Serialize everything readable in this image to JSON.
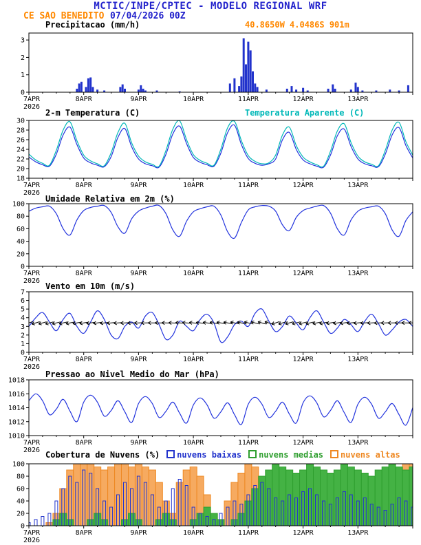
{
  "header": {
    "title": "MCTIC/INPE/CPTEC - MODELO REGIONAL WRF",
    "station": "CE SAO BENEDITO",
    "run_datetime": "07/04/2026 00Z",
    "location": "40.8650W 4.0486S 901m"
  },
  "colors": {
    "title_blue": "#2222cc",
    "orange": "#ff8800",
    "line_blue": "#2233dd",
    "cyan": "#00b8b8",
    "axis_black": "#000000"
  },
  "x_axis": {
    "day_labels": [
      "7APR",
      "8APR",
      "9APR",
      "10APR",
      "11APR",
      "12APR",
      "13APR"
    ],
    "year": "2026",
    "total_hours": 168
  },
  "chart_data": [
    {
      "type": "bar",
      "title": "Precipitacao (mm/h)",
      "ylim": [
        0,
        3.4
      ],
      "yticks": [
        0,
        1,
        2,
        3
      ],
      "bar_color": "#2233cc",
      "bars": [
        [
          21,
          0.2
        ],
        [
          22,
          0.5
        ],
        [
          23,
          0.6
        ],
        [
          25,
          0.3
        ],
        [
          26,
          0.8
        ],
        [
          27,
          0.85
        ],
        [
          28,
          0.3
        ],
        [
          30,
          0.15
        ],
        [
          33,
          0.1
        ],
        [
          40,
          0.3
        ],
        [
          41,
          0.45
        ],
        [
          42,
          0.2
        ],
        [
          48,
          0.15
        ],
        [
          49,
          0.4
        ],
        [
          50,
          0.2
        ],
        [
          51,
          0.1
        ],
        [
          56,
          0.1
        ],
        [
          66,
          0.05
        ],
        [
          88,
          0.5
        ],
        [
          90,
          0.8
        ],
        [
          92,
          0.35
        ],
        [
          93,
          0.9
        ],
        [
          94,
          3.1
        ],
        [
          95,
          1.6
        ],
        [
          96,
          2.9
        ],
        [
          97,
          2.4
        ],
        [
          98,
          1.2
        ],
        [
          99,
          0.5
        ],
        [
          100,
          0.3
        ],
        [
          104,
          0.15
        ],
        [
          113,
          0.2
        ],
        [
          115,
          0.35
        ],
        [
          117,
          0.15
        ],
        [
          120,
          0.25
        ],
        [
          122,
          0.1
        ],
        [
          131,
          0.2
        ],
        [
          133,
          0.45
        ],
        [
          134,
          0.2
        ],
        [
          141,
          0.15
        ],
        [
          143,
          0.55
        ],
        [
          144,
          0.3
        ],
        [
          146,
          0.1
        ],
        [
          152,
          0.1
        ],
        [
          158,
          0.15
        ],
        [
          162,
          0.1
        ],
        [
          166,
          0.4
        ]
      ]
    },
    {
      "type": "line",
      "title": "2-m Temperatura (C)",
      "ylim": [
        18,
        30
      ],
      "yticks": [
        18,
        20,
        22,
        24,
        26,
        28,
        30
      ],
      "t_step": 3,
      "series": [
        {
          "name": "2-m Temperatura (C)",
          "color": "#2233dd",
          "values": [
            22.4,
            21.4,
            20.8,
            20.5,
            23.0,
            27.0,
            28.6,
            25.0,
            22.2,
            21.2,
            20.7,
            20.4,
            22.5,
            26.5,
            28.3,
            24.5,
            22.0,
            21.0,
            20.6,
            20.3,
            23.0,
            27.2,
            28.8,
            25.2,
            22.3,
            21.3,
            20.8,
            20.5,
            23.2,
            27.5,
            29.0,
            25.0,
            22.1,
            21.1,
            20.7,
            21.0,
            22.0,
            26.0,
            27.5,
            24.0,
            21.8,
            21.0,
            20.5,
            20.3,
            22.8,
            26.8,
            28.2,
            24.6,
            22.0,
            21.0,
            20.6,
            20.4,
            23.0,
            27.0,
            28.5,
            24.8,
            22.2
          ]
        },
        {
          "name": "Temperatura Aparente (C)",
          "color": "#00b8b8",
          "values": [
            23.0,
            21.8,
            21.1,
            20.7,
            23.8,
            28.0,
            29.7,
            25.8,
            22.8,
            21.6,
            21.0,
            20.6,
            23.3,
            27.5,
            29.4,
            25.3,
            22.6,
            21.4,
            20.9,
            20.5,
            23.8,
            28.2,
            29.9,
            26.0,
            22.9,
            21.7,
            21.1,
            20.7,
            24.0,
            28.5,
            29.8,
            25.8,
            22.7,
            21.5,
            21.0,
            21.2,
            22.8,
            27.0,
            28.6,
            24.8,
            22.4,
            21.4,
            20.8,
            20.5,
            23.6,
            27.8,
            29.3,
            25.4,
            22.6,
            21.4,
            20.9,
            20.6,
            23.8,
            28.0,
            29.6,
            25.6,
            22.8
          ]
        }
      ]
    },
    {
      "type": "line",
      "title": "Umidade Relativa em 2m (%)",
      "ylim": [
        0,
        100
      ],
      "yticks": [
        0,
        20,
        40,
        60,
        80,
        100
      ],
      "t_step": 3,
      "series": [
        {
          "name": "Umidade Relativa",
          "color": "#2233dd",
          "values": [
            88,
            93,
            95,
            96,
            84,
            60,
            50,
            74,
            89,
            94,
            96,
            97,
            86,
            63,
            53,
            76,
            88,
            93,
            96,
            97,
            84,
            58,
            48,
            72,
            87,
            92,
            95,
            96,
            82,
            55,
            45,
            70,
            90,
            95,
            97,
            96,
            88,
            66,
            57,
            78,
            89,
            93,
            96,
            97,
            85,
            60,
            50,
            74,
            88,
            93,
            95,
            96,
            84,
            58,
            48,
            73,
            87
          ]
        }
      ]
    },
    {
      "type": "line",
      "title": "Vento em 10m (m/s)",
      "ylim": [
        0,
        7
      ],
      "yticks": [
        0,
        1,
        2,
        3,
        4,
        5,
        6,
        7
      ],
      "t_step": 3,
      "series": [
        {
          "name": "Vento em 10m",
          "color": "#2233dd",
          "values": [
            3.0,
            4.0,
            4.6,
            3.5,
            2.5,
            3.8,
            4.5,
            3.0,
            2.2,
            3.5,
            4.8,
            3.8,
            2.0,
            1.6,
            3.0,
            3.5,
            2.8,
            4.2,
            4.6,
            3.2,
            1.5,
            2.0,
            3.6,
            3.0,
            2.5,
            3.8,
            4.4,
            3.4,
            1.2,
            1.8,
            3.2,
            3.6,
            3.0,
            4.5,
            5.0,
            3.6,
            2.4,
            3.0,
            4.2,
            3.4,
            2.6,
            4.0,
            4.8,
            3.5,
            2.2,
            2.8,
            3.8,
            3.2,
            2.4,
            3.6,
            4.4,
            3.3,
            2.0,
            2.6,
            3.5,
            3.8,
            3.0
          ]
        }
      ],
      "wind_barbs": {
        "y_value": 3.4,
        "interval_hours": 3,
        "color": "#000000"
      }
    },
    {
      "type": "line",
      "title": "Pressao ao Nivel Medio do Mar (hPa)",
      "ylim": [
        1010,
        1018
      ],
      "yticks": [
        1010,
        1012,
        1014,
        1016,
        1018
      ],
      "t_step": 3,
      "series": [
        {
          "name": "Pressao ao Nivel Medio do Mar",
          "color": "#2233dd",
          "values": [
            1015.0,
            1016.0,
            1015.0,
            1013.0,
            1013.8,
            1015.2,
            1013.5,
            1012.0,
            1014.8,
            1015.8,
            1014.8,
            1012.8,
            1013.6,
            1015.0,
            1013.4,
            1011.9,
            1014.6,
            1015.6,
            1014.6,
            1012.6,
            1013.5,
            1014.8,
            1013.2,
            1011.8,
            1014.4,
            1015.4,
            1014.4,
            1012.5,
            1013.4,
            1014.7,
            1013.0,
            1011.6,
            1014.5,
            1015.5,
            1014.5,
            1012.6,
            1013.5,
            1014.8,
            1013.1,
            1011.8,
            1014.7,
            1015.7,
            1014.7,
            1012.7,
            1013.6,
            1015.0,
            1013.3,
            1011.9,
            1014.5,
            1015.5,
            1014.5,
            1012.5,
            1013.4,
            1014.6,
            1013.0,
            1011.5,
            1014.0
          ]
        }
      ]
    },
    {
      "type": "bar",
      "title": "Cobertura de Nuvens (%)",
      "ylim": [
        0,
        100
      ],
      "yticks": [
        0,
        20,
        40,
        60,
        80,
        100
      ],
      "t_step": 3,
      "series": [
        {
          "name": "nuvens baixas",
          "color": "#2233cc",
          "fill": "none",
          "values": [
            5,
            10,
            15,
            20,
            40,
            60,
            80,
            70,
            90,
            85,
            60,
            40,
            30,
            50,
            70,
            60,
            80,
            70,
            50,
            30,
            40,
            60,
            75,
            65,
            30,
            20,
            15,
            10,
            20,
            30,
            40,
            35,
            50,
            65,
            70,
            60,
            45,
            40,
            50,
            45,
            55,
            60,
            50,
            40,
            35,
            45,
            55,
            50,
            40,
            45,
            35,
            30,
            25,
            35,
            45,
            40,
            30
          ]
        },
        {
          "name": "nuvens medias",
          "color": "#2e9e2e",
          "fill": "#44b244",
          "values": [
            0,
            0,
            0,
            0,
            10,
            20,
            10,
            0,
            0,
            10,
            20,
            10,
            0,
            0,
            10,
            20,
            10,
            0,
            0,
            10,
            20,
            10,
            0,
            0,
            10,
            20,
            30,
            20,
            10,
            0,
            10,
            20,
            40,
            60,
            80,
            90,
            100,
            95,
            90,
            85,
            90,
            100,
            95,
            90,
            85,
            90,
            100,
            95,
            90,
            85,
            80,
            90,
            95,
            100,
            95,
            90,
            95
          ]
        },
        {
          "name": "nuvens altas",
          "color": "#ee8822",
          "fill": "#f6aa60",
          "values": [
            0,
            0,
            0,
            5,
            20,
            60,
            90,
            100,
            100,
            100,
            95,
            90,
            95,
            100,
            100,
            95,
            100,
            95,
            90,
            70,
            40,
            20,
            70,
            90,
            95,
            80,
            50,
            20,
            10,
            40,
            70,
            85,
            100,
            95,
            70,
            40,
            20,
            10,
            5,
            10,
            20,
            30,
            20,
            10,
            5,
            0,
            0,
            10,
            5,
            0,
            10,
            30,
            60,
            80,
            95,
            100,
            100
          ]
        }
      ]
    }
  ]
}
